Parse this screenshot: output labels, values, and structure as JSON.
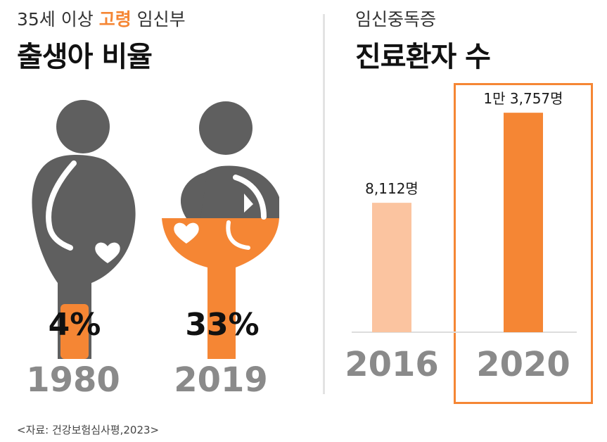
{
  "left": {
    "subtitle_pre": "35세 이상 ",
    "subtitle_accent": "고령",
    "subtitle_post": " 임신부",
    "title": "출생아 비율",
    "figures": [
      {
        "year": "1980",
        "percent_label": "4%",
        "percent": 4
      },
      {
        "year": "2019",
        "percent_label": "33%",
        "percent": 33
      }
    ]
  },
  "right": {
    "subtitle": "임신중독증",
    "title": "진료환자 수"
  },
  "chart_data": {
    "type": "bar",
    "categories": [
      "2016",
      "2020"
    ],
    "values": [
      8112,
      13757
    ],
    "value_labels": [
      "8,112명",
      "1만 3,757명"
    ],
    "title": "진료환자 수",
    "subtitle": "임신중독증",
    "ylim": [
      0,
      15000
    ],
    "grid": false,
    "highlight": "2020"
  },
  "colors": {
    "accent": "#f58634",
    "accent_light": "#fbc4a0",
    "figure_gray": "#5f5f5f",
    "year_gray": "#8a8a8a"
  },
  "source": "<자료: 건강보험심사평,2023>"
}
